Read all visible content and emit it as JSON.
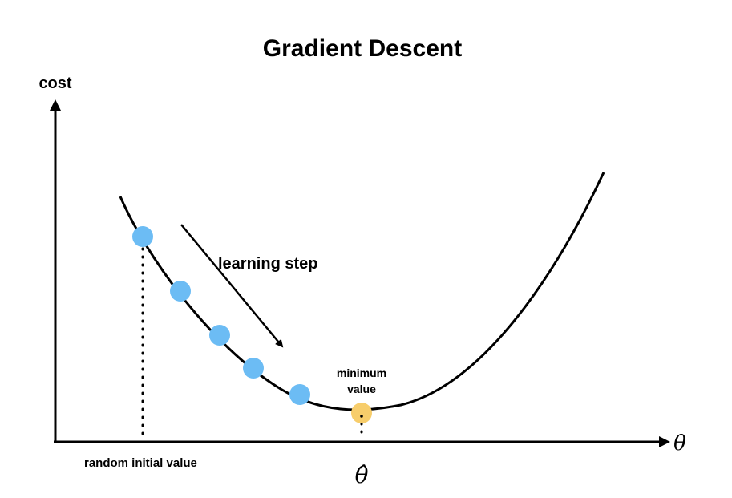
{
  "title": "Gradient Descent",
  "y_axis_label": "cost",
  "x_axis_label": "θ",
  "step_label": "learning step",
  "minimum_label_line1": "minimum",
  "minimum_label_line2": "value",
  "start_label": "random initial value",
  "theta_hat_label": "θ̂",
  "colors": {
    "curve": "#000000",
    "step_point": "#6cbcf4",
    "minimum_point": "#f7cd6b",
    "axes": "#000000"
  },
  "chart_data": {
    "type": "line",
    "description": "cost curve with descent steps",
    "step_points_count": 5,
    "minimum_points_count": 1
  }
}
